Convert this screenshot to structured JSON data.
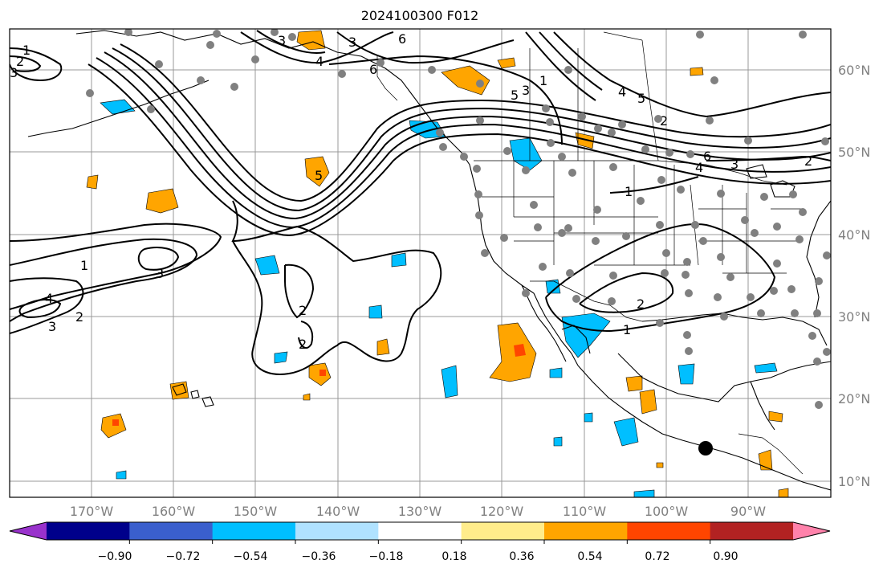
{
  "title": "2024100300 F012",
  "lat_labels": [
    "60°N",
    "50°N",
    "40°N",
    "30°N",
    "20°N",
    "10°N"
  ],
  "lon_labels": [
    "170°W",
    "160°W",
    "150°W",
    "140°W",
    "130°W",
    "120°W",
    "110°W",
    "100°W",
    "90°W"
  ],
  "colorbar": {
    "tick_labels": [
      "−0.90",
      "−0.72",
      "−0.54",
      "−0.36",
      "−0.18",
      "0.18",
      "0.36",
      "0.54",
      "0.72",
      "0.90"
    ],
    "colors": [
      "#9932cc",
      "#00008b",
      "#3a5fcd",
      "#00bfff",
      "#b0e2ff",
      "#ffffff",
      "#ffec8b",
      "#ffa500",
      "#ff4500",
      "#b22222",
      "#ff82ab"
    ]
  },
  "contour_labels": [
    "1",
    "2",
    "3",
    "4",
    "5",
    "6"
  ],
  "colors": {
    "label_gray": "#808080",
    "grid_gray": "#999999",
    "station_dot": "#808080"
  }
}
